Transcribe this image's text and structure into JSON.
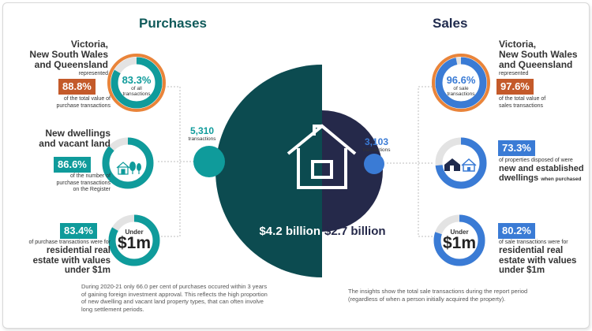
{
  "purchases": {
    "title": "Purchases",
    "states_text": "Victoria,\nNew South Wales\nand Queensland",
    "represented": "represented",
    "value_pct": "88.8%",
    "value_caption": "of the total value of\npurchase transactions",
    "ring1_pct": "83.3%",
    "ring1_caption": "of all\ntransactions",
    "dwellings_text": "New dwellings\nand vacant land",
    "dwellings_pct": "86.6%",
    "dwellings_caption": "of the number of\npurchase transactions\non the Register",
    "under_pct": "83.4%",
    "under_caption": "of purchase transactions were for",
    "under_bold": "residential real\nestate with values\nunder $1m",
    "under_small": "Under",
    "under_big": "$1m",
    "count": "5,310",
    "count_label": "transactions",
    "total": "$4.2 billion",
    "note": "During 2020-21 only 66.0 per cent of purchases occured within 3 years of gaining foreign investment approval. This reflects the high proportion of new dwelling and vacant land property types, that can often involve long settlement periods."
  },
  "sales": {
    "title": "Sales",
    "states_text": "Victoria,\nNew South Wales\nand Queensland",
    "represented": "represented",
    "value_pct": "97.6%",
    "value_caption": "of the total value of\nsales transactions",
    "ring1_pct": "96.6%",
    "ring1_caption": "of sale\ntransactions",
    "new_pct": "73.3%",
    "new_caption": "of properties disposed of were",
    "new_bold": "new and established\ndwellings",
    "new_suffix": "when purchased",
    "under_pct": "80.2%",
    "under_caption": "of sale transactions were for",
    "under_bold": "residential real\nestate with values\nunder $1m",
    "under_small": "Under",
    "under_big": "$1m",
    "count": "3,103",
    "count_label": "transactions",
    "total": "$2.7 billion",
    "note": "The insights show the total sale transactions during the report period (regardless of when a person initially acquired the property)."
  },
  "rings": {
    "p1": 0.833,
    "p2": 0.866,
    "p3": 0.834,
    "s1": 0.966,
    "s2": 0.733,
    "s3": 0.802
  },
  "colors": {
    "teal": "#0f9b9b",
    "dark_teal": "#0c4b50",
    "navy": "#25294a",
    "blue": "#3a7bd5",
    "orange": "#e9843a",
    "orange_badge": "#c45a2a",
    "track": "#e3e3e3"
  }
}
